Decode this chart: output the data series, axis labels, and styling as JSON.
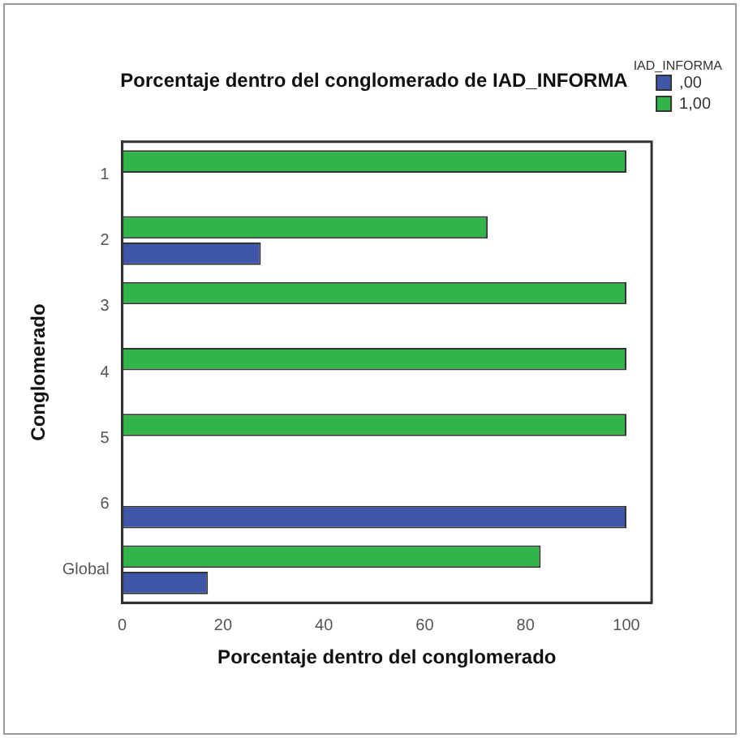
{
  "chart_data": {
    "type": "bar",
    "orientation": "horizontal",
    "title": "Porcentaje dentro del conglomerado de IAD_INFORMA",
    "xlabel": "Porcentaje dentro del conglomerado",
    "ylabel": "Conglomerado",
    "legend_title": "IAD_INFORMA",
    "legend": "top right",
    "grid": false,
    "categories": [
      "1",
      "2",
      "3",
      "4",
      "5",
      "6",
      "Global"
    ],
    "xlim": [
      0,
      105
    ],
    "xticks": [
      0,
      20,
      40,
      60,
      80,
      100
    ],
    "series": [
      {
        "name": ",00",
        "color": "#3f56a8",
        "values": [
          null,
          27.5,
          null,
          null,
          null,
          100,
          17
        ]
      },
      {
        "name": "1,00",
        "color": "#31b449",
        "values": [
          100,
          72.5,
          100,
          100,
          100,
          null,
          83
        ]
      }
    ]
  }
}
